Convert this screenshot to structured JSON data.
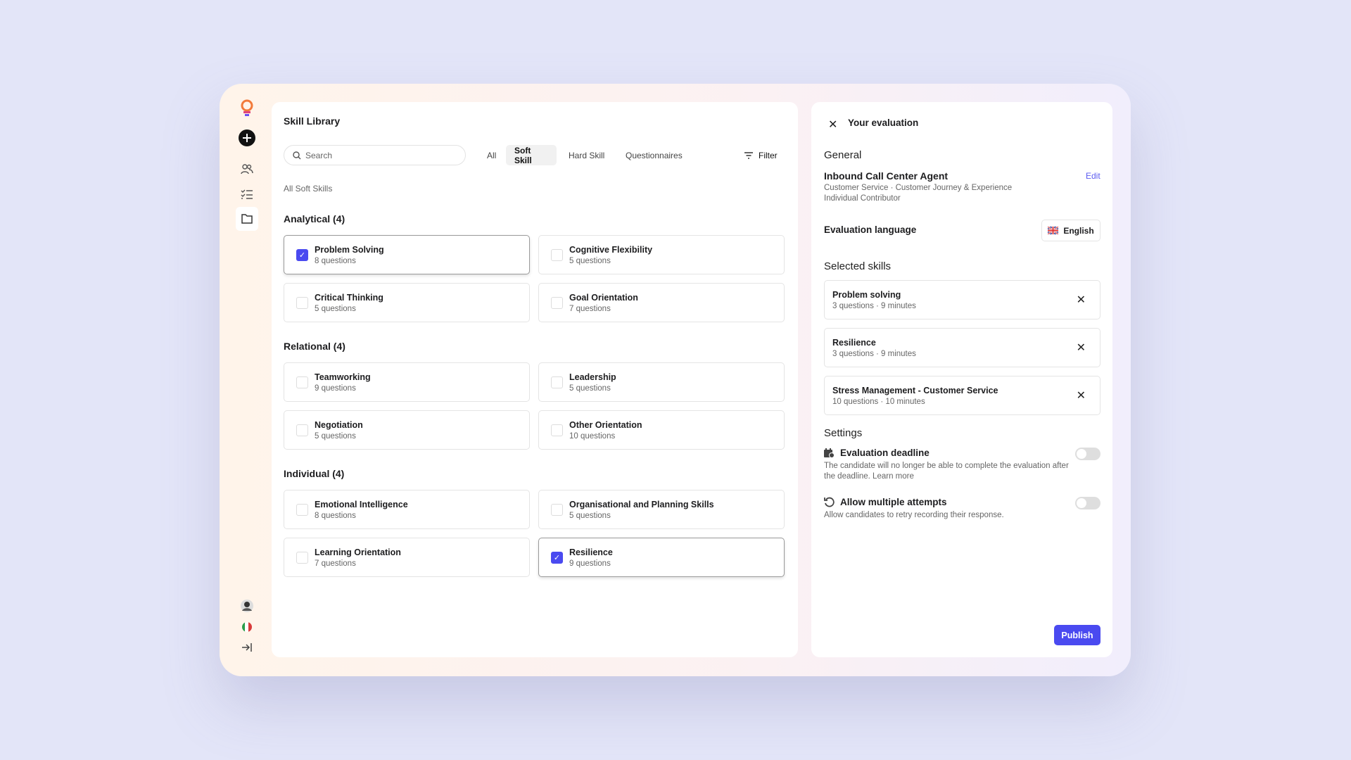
{
  "sidebar": {
    "icons": [
      "logo-icon",
      "plus-icon",
      "users-icon",
      "checklist-icon",
      "folder-icon",
      "avatar",
      "italy-flag-icon",
      "collapse-icon"
    ]
  },
  "library": {
    "title": "Skill Library",
    "search_placeholder": "Search",
    "tabs": [
      {
        "label": "All"
      },
      {
        "label": "Soft Skill",
        "active": true
      },
      {
        "label": "Hard Skill"
      },
      {
        "label": "Questionnaires"
      }
    ],
    "filter_label": "Filter",
    "breadcrumb": "All Soft Skills",
    "groups": [
      {
        "title": "Analytical (4)",
        "skills": [
          {
            "name": "Problem Solving",
            "count": "8 questions",
            "checked": true
          },
          {
            "name": "Cognitive Flexibility",
            "count": "5 questions",
            "checked": false
          },
          {
            "name": "Critical Thinking",
            "count": "5 questions",
            "checked": false
          },
          {
            "name": "Goal Orientation",
            "count": "7 questions",
            "checked": false
          }
        ]
      },
      {
        "title": "Relational (4)",
        "skills": [
          {
            "name": "Teamworking",
            "count": "9 questions",
            "checked": false
          },
          {
            "name": "Leadership",
            "count": "5 questions",
            "checked": false
          },
          {
            "name": "Negotiation",
            "count": "5 questions",
            "checked": false
          },
          {
            "name": "Other Orientation",
            "count": "10 questions",
            "checked": false
          }
        ]
      },
      {
        "title": "Individual (4)",
        "skills": [
          {
            "name": "Emotional Intelligence",
            "count": "8 questions",
            "checked": false
          },
          {
            "name": "Organisational and Planning Skills",
            "count": "5 questions",
            "checked": false
          },
          {
            "name": "Learning Orientation",
            "count": "7 questions",
            "checked": false
          },
          {
            "name": "Resilience",
            "count": "9 questions",
            "checked": true
          }
        ]
      }
    ]
  },
  "evaluation": {
    "title": "Your evaluation",
    "general_heading": "General",
    "job_title": "Inbound Call Center Agent",
    "job_line1": "Customer Service · Customer Journey & Experience",
    "job_line2": "Individual Contributor",
    "edit_label": "Edit",
    "language_label": "Evaluation language",
    "language_value": "English",
    "selected_heading": "Selected skills",
    "selected": [
      {
        "name": "Problem solving",
        "meta": "3 questions · 9 minutes"
      },
      {
        "name": "Resilience",
        "meta": "3 questions · 9 minutes"
      },
      {
        "name": "Stress Management - Customer Service",
        "meta": "10 questions · 10 minutes"
      }
    ],
    "settings_heading": "Settings",
    "settings": [
      {
        "title": "Evaluation deadline",
        "desc": "The candidate will no longer be able to complete the evaluation after the deadline. Learn more",
        "enabled": false
      },
      {
        "title": "Allow multiple attempts",
        "desc": "Allow candidates to retry recording their response.",
        "enabled": false
      }
    ],
    "publish_label": "Publish"
  },
  "colors": {
    "accent": "#4a4af0"
  }
}
